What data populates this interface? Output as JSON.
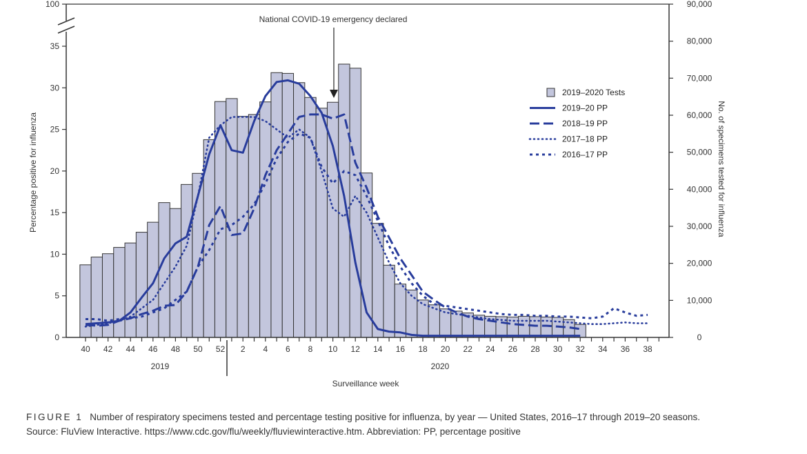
{
  "chart_data": {
    "type": "bar",
    "annotation": "National COVID-19 emergency declared",
    "xlabel": "Surveillance week",
    "ylabel_left": "Percentage  positive for influenza",
    "ylabel_right": "No. of specimens tested for influenza",
    "year_labels": [
      "2019",
      "2020"
    ],
    "weeks": [
      40,
      41,
      42,
      43,
      44,
      45,
      46,
      47,
      48,
      49,
      50,
      51,
      52,
      1,
      2,
      3,
      4,
      5,
      6,
      7,
      8,
      9,
      10,
      11,
      12,
      13,
      14,
      15,
      16,
      17,
      18,
      19,
      20,
      21,
      22,
      23,
      24,
      25,
      26,
      27,
      28,
      29,
      30,
      31,
      32,
      33,
      34,
      35,
      36,
      37,
      38,
      39
    ],
    "x_tick_labels": [
      "40",
      "42",
      "44",
      "46",
      "48",
      "50",
      "52",
      "2",
      "4",
      "6",
      "8",
      "10",
      "12",
      "14",
      "16",
      "18",
      "20",
      "22",
      "24",
      "26",
      "28",
      "30",
      "32",
      "34",
      "36",
      "38"
    ],
    "left_axis": {
      "ticks": [
        "0",
        "5",
        "10",
        "15",
        "20",
        "25",
        "30",
        "35"
      ],
      "break_top": "100",
      "range": [
        0,
        35
      ]
    },
    "right_axis": {
      "ticks": [
        "0",
        "10,000",
        "20,000",
        "30,000",
        "40,000",
        "50,000",
        "60,000",
        "70,000",
        "80,000",
        "90,000"
      ],
      "range": [
        0,
        90000
      ]
    },
    "legend": [
      "2019–2020 Tests",
      "2019–20 PP",
      "2018–19 PP",
      "2017–18 PP",
      "2016–17 PP"
    ],
    "bars": {
      "name": "2019–2020 Tests",
      "values": [
        19600,
        21700,
        22600,
        24300,
        25500,
        28400,
        31100,
        36400,
        34800,
        41300,
        44300,
        53400,
        63700,
        64500,
        59700,
        60200,
        63600,
        71500,
        71300,
        68800,
        64800,
        61900,
        63500,
        73800,
        72700,
        44400,
        30800,
        19500,
        14400,
        12800,
        10100,
        8800,
        7700,
        7100,
        6600,
        6000,
        5700,
        5600,
        5500,
        5700,
        5600,
        5500,
        5400,
        4800,
        3500
      ]
    },
    "series": [
      {
        "name": "2019–20 PP",
        "style": "solid",
        "values": [
          1.6,
          1.7,
          1.8,
          2.0,
          3.0,
          4.8,
          6.5,
          9.5,
          11.3,
          12.1,
          17.0,
          22.0,
          25.5,
          22.5,
          22.2,
          26.0,
          29.0,
          30.7,
          30.9,
          30.5,
          29.0,
          27.0,
          23.0,
          17.0,
          9.0,
          3.0,
          1.0,
          0.7,
          0.6,
          0.3,
          0.2,
          0.2,
          0.2,
          0.2,
          0.2,
          0.2,
          0.2,
          0.2,
          0.2,
          0.2,
          0.2,
          0.2,
          0.2,
          0.2,
          0.2
        ]
      },
      {
        "name": "2018–19 PP",
        "style": "dashed",
        "values": [
          1.5,
          1.4,
          1.5,
          2.0,
          2.3,
          2.8,
          3.2,
          3.8,
          3.9,
          5.5,
          8.5,
          13.5,
          15.8,
          12.3,
          12.5,
          15.5,
          19.5,
          22.5,
          24.5,
          26.5,
          26.8,
          26.8,
          26.3,
          26.8,
          21.0,
          18.0,
          14.5,
          12.0,
          9.5,
          7.5,
          5.5,
          4.5,
          3.6,
          3.0,
          2.5,
          2.2,
          2.0,
          1.8,
          1.6,
          1.5,
          1.4,
          1.4,
          1.3,
          1.2,
          1.0
        ]
      },
      {
        "name": "2017–18 PP",
        "style": "dotted",
        "values": [
          1.3,
          1.5,
          1.7,
          2.0,
          2.5,
          3.5,
          4.5,
          6.5,
          8.5,
          11.0,
          17.0,
          24.0,
          25.5,
          26.5,
          26.5,
          26.5,
          26.0,
          25.0,
          24.0,
          25.0,
          24.0,
          20.0,
          15.5,
          14.5,
          17.0,
          15.0,
          12.0,
          9.0,
          6.5,
          5.0,
          4.0,
          3.5,
          3.0,
          2.8,
          2.6,
          2.4,
          2.2,
          2.1,
          2.0,
          2.0,
          2.0,
          2.0,
          1.9,
          1.8,
          1.7,
          1.6,
          1.6,
          1.7,
          1.8,
          1.7,
          1.7
        ]
      },
      {
        "name": "2016–17 PP",
        "style": "dotted-bold",
        "values": [
          2.2,
          2.2,
          2.0,
          2.2,
          2.3,
          2.5,
          3.0,
          3.5,
          4.5,
          5.5,
          8.5,
          10.5,
          13.0,
          13.5,
          14.5,
          16.0,
          18.5,
          21.5,
          23.5,
          24.5,
          24.0,
          20.5,
          18.5,
          20.0,
          19.5,
          17.0,
          14.0,
          11.0,
          8.5,
          6.5,
          5.0,
          4.0,
          3.8,
          3.6,
          3.4,
          3.2,
          3.0,
          2.8,
          2.7,
          2.7,
          2.6,
          2.6,
          2.5,
          2.5,
          2.4,
          2.3,
          2.5,
          3.5,
          3.0,
          2.6,
          2.7
        ]
      }
    ]
  },
  "caption": {
    "figure_label": "FIGURE 1",
    "text": "Number of respiratory specimens tested and percentage testing positive for influenza, by year — United States, 2016–17 through 2019–20 seasons. Source: FluView Interactive. https://www.cdc.gov/flu/weekly/fluviewinteractive.htm. Abbreviation: PP, percentage positive"
  },
  "colors": {
    "bar_fill": "#c3c6dd",
    "bar_stroke": "#333333",
    "line": "#283c9c"
  },
  "icons": {
    "legend_bar": "legend-bar-swatch",
    "legend_line": "legend-line-swatch"
  }
}
